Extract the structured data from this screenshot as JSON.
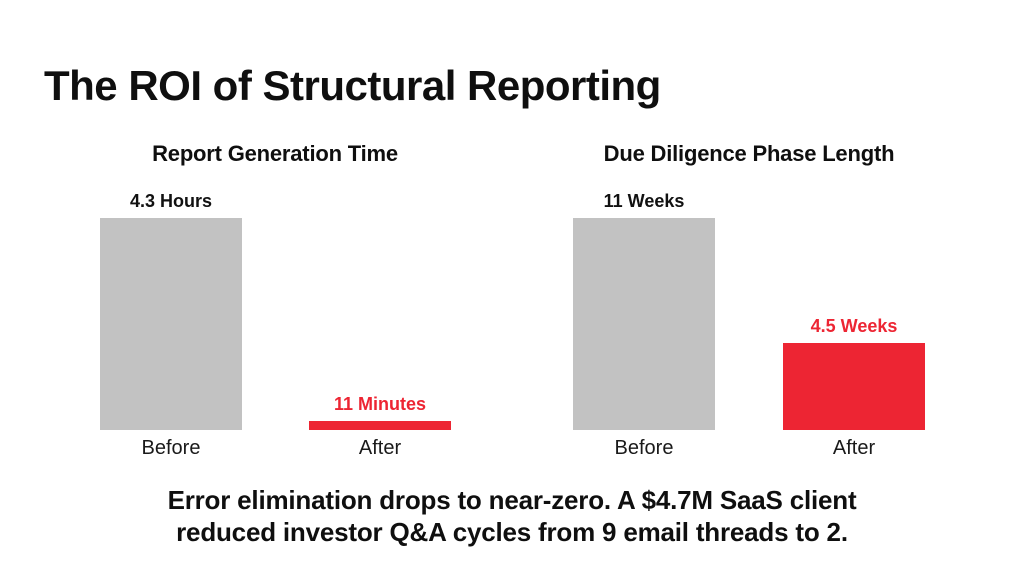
{
  "page": {
    "title": "The ROI of Structural Reporting",
    "footer_line1": "Error elimination drops to near-zero. A $4.7M SaaS client",
    "footer_line2": "reduced investor Q&A cycles from 9 email threads to 2."
  },
  "colors": {
    "background": "#FFFFFF",
    "text": "#0F0F0F",
    "before_bar": "#C2C2C2",
    "after_bar": "#ED2533",
    "accent_text": "#ED2533"
  },
  "chart_data": [
    {
      "type": "bar",
      "title": "Report Generation Time",
      "categories": [
        "Before",
        "After"
      ],
      "values": [
        258,
        11
      ],
      "unit": "minutes",
      "value_labels": [
        "4.3 Hours",
        "11 Minutes"
      ],
      "bar_colors": [
        "#C2C2C2",
        "#ED2533"
      ],
      "legend": "none",
      "grid": false,
      "axis_labels": "none"
    },
    {
      "type": "bar",
      "title": "Due Diligence Phase Length",
      "categories": [
        "Before",
        "After"
      ],
      "values": [
        11,
        4.5
      ],
      "unit": "weeks",
      "value_labels": [
        "11 Weeks",
        "4.5 Weeks"
      ],
      "bar_colors": [
        "#C2C2C2",
        "#ED2533"
      ],
      "legend": "none",
      "grid": false,
      "axis_labels": "none"
    }
  ]
}
